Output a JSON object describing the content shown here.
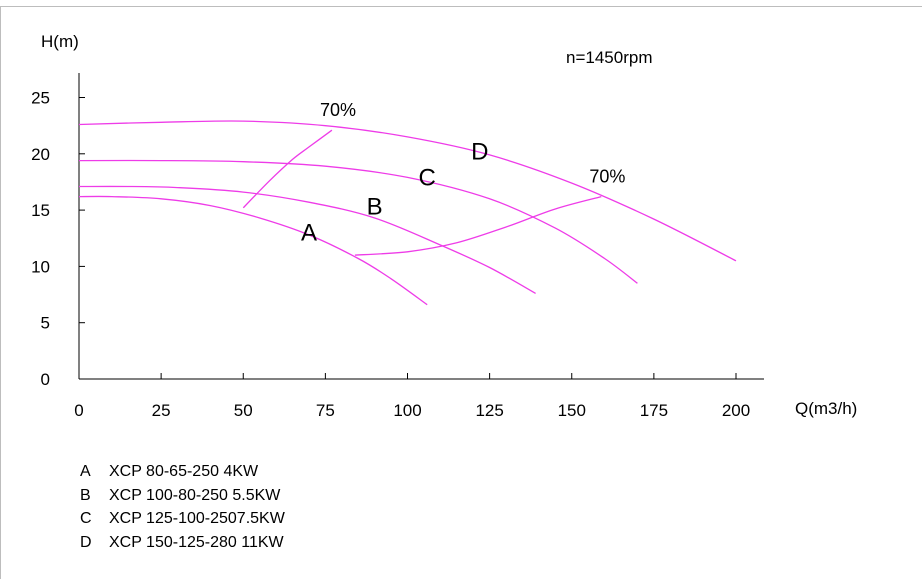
{
  "chart_data": {
    "type": "line",
    "xlabel": "Q(m3/h)",
    "ylabel": "H(m)",
    "xlim": [
      0,
      200
    ],
    "ylim": [
      0,
      27
    ],
    "x_ticks": [
      0,
      25,
      50,
      75,
      100,
      125,
      150,
      175,
      200
    ],
    "y_ticks": [
      0,
      5,
      10,
      15,
      20,
      25
    ],
    "grid": false,
    "speed_annotation": "n=1450rpm",
    "series": [
      {
        "name": "A",
        "x": [
          0,
          10,
          25,
          40,
          55,
          70,
          85,
          95,
          106
        ],
        "y": [
          16.2,
          16.2,
          16.0,
          15.4,
          14.3,
          12.8,
          10.7,
          8.9,
          6.6
        ]
      },
      {
        "name": "B",
        "x": [
          0,
          15,
          30,
          50,
          70,
          90,
          110,
          125,
          139
        ],
        "y": [
          17.1,
          17.1,
          17.0,
          16.6,
          15.7,
          14.3,
          11.9,
          9.9,
          7.6
        ]
      },
      {
        "name": "C",
        "x": [
          0,
          25,
          50,
          75,
          100,
          125,
          145,
          160,
          170
        ],
        "y": [
          19.4,
          19.4,
          19.3,
          18.9,
          17.9,
          16.0,
          13.4,
          10.7,
          8.5
        ]
      },
      {
        "name": "D",
        "x": [
          0,
          25,
          50,
          75,
          100,
          125,
          150,
          175,
          200
        ],
        "y": [
          22.6,
          22.8,
          22.9,
          22.5,
          21.5,
          19.9,
          17.4,
          14.2,
          10.5
        ]
      }
    ],
    "efficiency_lines": [
      {
        "label": "70%",
        "x": [
          50,
          58,
          65,
          70,
          77
        ],
        "y": [
          15.2,
          17.6,
          19.5,
          20.6,
          22.1
        ]
      },
      {
        "label": "70%",
        "x": [
          84,
          100,
          115,
          130,
          145,
          159
        ],
        "y": [
          11.0,
          11.3,
          12.1,
          13.5,
          15.1,
          16.2
        ]
      }
    ],
    "curve_labels": [
      {
        "text": "A",
        "x": 70,
        "y": 12.3
      },
      {
        "text": "B",
        "x": 90,
        "y": 14.6
      },
      {
        "text": "C",
        "x": 106,
        "y": 17.2
      },
      {
        "text": "D",
        "x": 122,
        "y": 19.5
      }
    ],
    "legend": [
      {
        "key": "A",
        "text": "XCP 80-65-250 4KW"
      },
      {
        "key": "B",
        "text": "XCP 100-80-250 5.5KW"
      },
      {
        "key": "C",
        "text": "XCP 125-100-2507.5KW"
      },
      {
        "key": "D",
        "text": "XCP 150-125-280 11KW"
      }
    ],
    "colors": {
      "curve": "#ee3ce8",
      "axis": "#000000"
    }
  }
}
